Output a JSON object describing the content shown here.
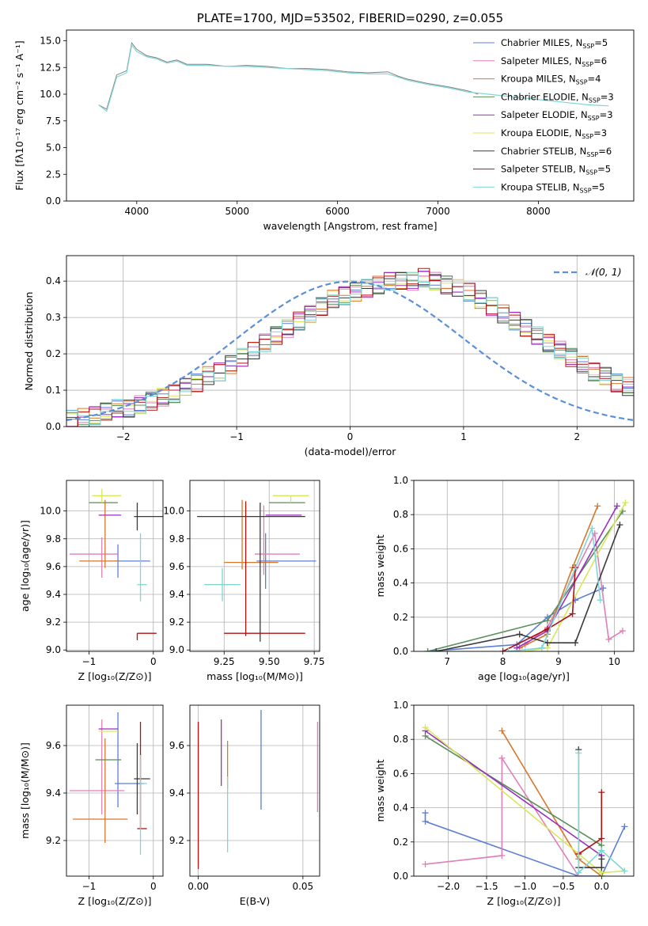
{
  "chart_data": [
    {
      "id": "spectrum",
      "type": "line",
      "title": "PLATE=1700, MJD=53502, FIBERID=0290, z=0.055",
      "xlabel": "wavelength [Angstrom, rest frame]",
      "ylabel": "Flux [fλ10⁻¹⁷ erg cm⁻² s⁻¹ A⁻¹]",
      "xlim": [
        3300,
        8950
      ],
      "ylim": [
        0,
        16
      ],
      "xticks": [
        "4000",
        "5000",
        "6000",
        "7000",
        "8000"
      ],
      "yticks": [
        "0.0",
        "2.5",
        "5.0",
        "7.5",
        "10.0",
        "12.5",
        "15.0"
      ],
      "grid": false,
      "legend_position": "top-right",
      "legend": [
        {
          "name": "Chabrier MILES, N",
          "sub": "SSP",
          "tail": "=5",
          "color": "#5b7fd6"
        },
        {
          "name": "Salpeter MILES, N",
          "sub": "SSP",
          "tail": "=6",
          "color": "#e07fb8"
        },
        {
          "name": "Kroupa MILES, N",
          "sub": "SSP",
          "tail": "=4",
          "color": "#d9772a"
        },
        {
          "name": "Chabrier ELODIE, N",
          "sub": "SSP",
          "tail": "=3",
          "color": "#5a8f5a"
        },
        {
          "name": "Salpeter ELODIE, N",
          "sub": "SSP",
          "tail": "=3",
          "color": "#9b2fbf"
        },
        {
          "name": "Kroupa ELODIE, N",
          "sub": "SSP",
          "tail": "=3",
          "color": "#d5e85a"
        },
        {
          "name": "Chabrier STELIB, N",
          "sub": "SSP",
          "tail": "=6",
          "color": "#3a3a3a"
        },
        {
          "name": "Salpeter STELIB, N",
          "sub": "SSP",
          "tail": "=5",
          "color": "#b01010"
        },
        {
          "name": "Kroupa STELIB, N",
          "sub": "SSP",
          "tail": "=5",
          "color": "#7fd6d6"
        }
      ],
      "series": [
        {
          "name": "data",
          "color": "#808080",
          "x": [
            3620,
            3700,
            3800,
            3900,
            3950,
            4000,
            4100,
            4200,
            4300,
            4400,
            4500,
            4700,
            4900,
            5100,
            5300,
            5500,
            5700,
            5900,
            6100,
            6300,
            6500,
            6600,
            6700,
            6900,
            7100,
            7300,
            7400
          ],
          "y": [
            9.0,
            8.6,
            11.8,
            12.2,
            14.8,
            14.2,
            13.6,
            13.4,
            13.0,
            13.2,
            12.8,
            12.8,
            12.6,
            12.7,
            12.6,
            12.4,
            12.4,
            12.3,
            12.1,
            12.0,
            12.1,
            11.7,
            11.4,
            11.0,
            10.7,
            10.3,
            10.0
          ]
        },
        {
          "name": "model",
          "color": "#7fd6d6",
          "x": [
            3620,
            3700,
            3800,
            3900,
            3950,
            4000,
            4100,
            4200,
            4300,
            4400,
            4500,
            4700,
            4900,
            5100,
            5300,
            5500,
            5700,
            5900,
            6100,
            6300,
            6500,
            6700,
            6900,
            7100,
            7300,
            7500,
            7700,
            7900,
            8100,
            8300,
            8500,
            8700
          ],
          "y": [
            9.0,
            8.4,
            11.6,
            12.0,
            14.6,
            14.0,
            13.5,
            13.3,
            12.9,
            13.1,
            12.7,
            12.7,
            12.6,
            12.6,
            12.5,
            12.4,
            12.3,
            12.2,
            12.0,
            11.9,
            11.9,
            11.3,
            10.9,
            10.6,
            10.2,
            10.0,
            9.8,
            9.6,
            9.4,
            9.2,
            9.0,
            8.9
          ]
        }
      ]
    },
    {
      "id": "residuals",
      "type": "histogram",
      "xlabel": "(data-model)/error",
      "ylabel": "Normed distribution",
      "xlim": [
        -2.5,
        2.5
      ],
      "ylim": [
        0,
        0.47
      ],
      "xticks": [
        "−2",
        "−1",
        "0",
        "1",
        "2"
      ],
      "yticks": [
        "0.0",
        "0.1",
        "0.2",
        "0.3",
        "0.4"
      ],
      "grid": true,
      "legend_position": "top-right",
      "legend": [
        {
          "name": "𝒩(0, 1)",
          "color": "#5b8fd9",
          "style": "dashed"
        }
      ],
      "bin_width": 0.1,
      "bin_start": -2.5,
      "hist_values": [
        0.02,
        0.025,
        0.03,
        0.04,
        0.05,
        0.05,
        0.06,
        0.07,
        0.08,
        0.09,
        0.11,
        0.12,
        0.14,
        0.15,
        0.17,
        0.19,
        0.21,
        0.23,
        0.25,
        0.27,
        0.29,
        0.31,
        0.33,
        0.35,
        0.36,
        0.37,
        0.38,
        0.39,
        0.4,
        0.4,
        0.4,
        0.41,
        0.4,
        0.39,
        0.38,
        0.37,
        0.35,
        0.33,
        0.31,
        0.29,
        0.27,
        0.25,
        0.23,
        0.21,
        0.19,
        0.17,
        0.15,
        0.14,
        0.12,
        0.11
      ],
      "normal": {
        "mean": 0,
        "sd": 1
      }
    },
    {
      "id": "age-vs-Z",
      "type": "errorbar",
      "xlabel": "Z [log₁₀(Z/Z⊙)]",
      "ylabel": "age  [log₁₀(age/yr)]",
      "xlim": [
        -1.35,
        0.15
      ],
      "ylim": [
        8.99,
        10.22
      ],
      "xticks": [
        "−1",
        "0"
      ],
      "yticks": [
        "9.0",
        "9.2",
        "9.4",
        "9.6",
        "9.8",
        "10.0"
      ],
      "grid": true,
      "points": [
        {
          "x": -0.55,
          "y": 9.64,
          "xerr": [
            0.05,
            0.5
          ],
          "yerr": [
            0.12,
            0.12
          ],
          "color": "#5b7fd6"
        },
        {
          "x": -0.8,
          "y": 9.69,
          "xerr": [
            0.5,
            0.25
          ],
          "yerr": [
            0.17,
            0.12
          ],
          "color": "#e07fb8"
        },
        {
          "x": -0.75,
          "y": 9.64,
          "xerr": [
            0.4,
            0.2
          ],
          "yerr": [
            0.05,
            0.44
          ],
          "color": "#d9772a"
        },
        {
          "x": -0.8,
          "y": 10.06,
          "xerr": [
            0.2,
            0.25
          ],
          "yerr": [
            0.0,
            0.0
          ],
          "color": "#5a8f5a"
        },
        {
          "x": -0.8,
          "y": 9.97,
          "xerr": [
            0.05,
            0.3
          ],
          "yerr": [
            0.0,
            0.0
          ],
          "color": "#9b2fbf"
        },
        {
          "x": -0.8,
          "y": 10.11,
          "xerr": [
            0.15,
            0.3
          ],
          "yerr": [
            0.05,
            0.05
          ],
          "color": "#d5e85a"
        },
        {
          "x": -0.25,
          "y": 9.96,
          "xerr": [
            0.05,
            0.4
          ],
          "yerr": [
            0.1,
            0.1
          ],
          "color": "#3a3a3a"
        },
        {
          "x": -0.25,
          "y": 9.12,
          "xerr": [
            0.0,
            0.3
          ],
          "yerr": [
            0.05,
            0.0
          ],
          "color": "#b01010"
        },
        {
          "x": -0.2,
          "y": 9.47,
          "xerr": [
            0.05,
            0.1
          ],
          "yerr": [
            0.12,
            0.37
          ],
          "color": "#7fd6d6"
        }
      ]
    },
    {
      "id": "age-vs-mass",
      "type": "errorbar",
      "xlabel": "mass [log₁₀(M/M⊙)]",
      "ylabel": "",
      "xlim": [
        9.06,
        9.78
      ],
      "ylim": [
        8.99,
        10.22
      ],
      "xticks": [
        "9.25",
        "9.50",
        "9.75"
      ],
      "yticks": [
        "9.0",
        "9.2",
        "9.4",
        "9.6",
        "9.8",
        "10.0"
      ],
      "grid": true,
      "points": [
        {
          "x": 9.48,
          "y": 9.64,
          "xerr": [
            0.05,
            0.28
          ],
          "yerr": [
            0.2,
            0.2
          ],
          "color": "#5b7fd6"
        },
        {
          "x": 9.47,
          "y": 9.69,
          "xerr": [
            0.05,
            0.2
          ],
          "yerr": [
            0.15,
            0.35
          ],
          "color": "#e07fb8"
        },
        {
          "x": 9.35,
          "y": 9.63,
          "xerr": [
            0.1,
            0.2
          ],
          "yerr": [
            0.05,
            0.45
          ],
          "color": "#d9772a"
        },
        {
          "x": 9.55,
          "y": 10.06,
          "xerr": [
            0.05,
            0.15
          ],
          "yerr": [
            0.0,
            0.0
          ],
          "color": "#5a8f5a"
        },
        {
          "x": 9.53,
          "y": 9.97,
          "xerr": [
            0.05,
            0.15
          ],
          "yerr": [
            0.0,
            0.0
          ],
          "color": "#9b2fbf"
        },
        {
          "x": 9.62,
          "y": 10.11,
          "xerr": [
            0.1,
            0.1
          ],
          "yerr": [
            0.05,
            0.0
          ],
          "color": "#d5e85a"
        },
        {
          "x": 9.45,
          "y": 9.96,
          "xerr": [
            0.35,
            0.25
          ],
          "yerr": [
            0.9,
            0.1
          ],
          "color": "#3a3a3a"
        },
        {
          "x": 9.37,
          "y": 9.12,
          "xerr": [
            0.12,
            0.33
          ],
          "yerr": [
            0.02,
            0.95
          ],
          "color": "#b01010"
        },
        {
          "x": 9.24,
          "y": 9.47,
          "xerr": [
            0.1,
            0.1
          ],
          "yerr": [
            0.12,
            0.12
          ],
          "color": "#7fd6d6"
        }
      ]
    },
    {
      "id": "massweight-vs-age",
      "type": "line",
      "xlabel": "age  [log₁₀(age/yr)]",
      "ylabel": "mass weight",
      "xlim": [
        6.4,
        10.35
      ],
      "ylim": [
        0,
        1.0
      ],
      "xticks": [
        "7",
        "8",
        "9",
        "10"
      ],
      "yticks": [
        "0.0",
        "0.2",
        "0.4",
        "0.6",
        "0.8",
        "1.0"
      ],
      "grid": true,
      "series": [
        {
          "color": "#5b7fd6",
          "x": [
            6.65,
            8.25,
            8.8,
            9.3,
            9.8
          ],
          "y": [
            0.0,
            0.04,
            0.2,
            0.3,
            0.37
          ]
        },
        {
          "color": "#e07fb8",
          "x": [
            8.4,
            8.8,
            9.65,
            9.9,
            10.15
          ],
          "y": [
            0.04,
            0.14,
            0.69,
            0.07,
            0.12
          ]
        },
        {
          "color": "#d9772a",
          "x": [
            8.3,
            8.8,
            9.25,
            9.7
          ],
          "y": [
            0.02,
            0.1,
            0.49,
            0.85
          ]
        },
        {
          "color": "#5a8f5a",
          "x": [
            6.65,
            8.8,
            10.15
          ],
          "y": [
            0.0,
            0.18,
            0.82
          ]
        },
        {
          "color": "#9b2fbf",
          "x": [
            8.25,
            8.8,
            10.05
          ],
          "y": [
            0.02,
            0.12,
            0.85
          ]
        },
        {
          "color": "#d5e85a",
          "x": [
            8.4,
            8.8,
            10.2
          ],
          "y": [
            0.0,
            0.02,
            0.87
          ]
        },
        {
          "color": "#3a3a3a",
          "x": [
            6.8,
            8.3,
            8.8,
            9.3,
            10.1
          ],
          "y": [
            0.0,
            0.1,
            0.05,
            0.05,
            0.74
          ]
        },
        {
          "color": "#b01010",
          "x": [
            8.0,
            8.8,
            9.25,
            9.3
          ],
          "y": [
            0.0,
            0.13,
            0.22,
            0.49
          ]
        },
        {
          "color": "#7fd6d6",
          "x": [
            8.1,
            8.7,
            9.6,
            9.75
          ],
          "y": [
            0.0,
            0.02,
            0.72,
            0.3
          ]
        }
      ]
    },
    {
      "id": "mass-vs-Z",
      "type": "errorbar",
      "xlabel": "Z [log₁₀(Z/Z⊙)]",
      "ylabel": "mass [log₁₀(M/M⊙)]",
      "xlim": [
        -1.35,
        0.15
      ],
      "ylim": [
        9.05,
        9.77
      ],
      "xticks": [
        "−1",
        "0"
      ],
      "yticks": [
        "9.2",
        "9.4",
        "9.6"
      ],
      "grid": true,
      "points": [
        {
          "x": -0.55,
          "y": 9.44,
          "xerr": [
            0.05,
            0.4
          ],
          "yerr": [
            0.1,
            0.3
          ],
          "color": "#5b7fd6"
        },
        {
          "x": -0.8,
          "y": 9.41,
          "xerr": [
            0.5,
            0.35
          ],
          "yerr": [
            0.1,
            0.3
          ],
          "color": "#e07fb8"
        },
        {
          "x": -0.75,
          "y": 9.29,
          "xerr": [
            0.5,
            0.35
          ],
          "yerr": [
            0.1,
            0.34
          ],
          "color": "#d9772a"
        },
        {
          "x": -0.8,
          "y": 9.54,
          "xerr": [
            0.1,
            0.3
          ],
          "yerr": [
            0.0,
            0.0
          ],
          "color": "#5a8f5a"
        },
        {
          "x": -0.75,
          "y": 9.67,
          "xerr": [
            0.1,
            0.2
          ],
          "yerr": [
            0.0,
            0.0
          ],
          "color": "#9b2fbf"
        },
        {
          "x": -0.85,
          "y": 9.66,
          "xerr": [
            0.0,
            0.3
          ],
          "yerr": [
            0.0,
            0.0
          ],
          "color": "#d5e85a"
        },
        {
          "x": -0.25,
          "y": 9.46,
          "xerr": [
            0.05,
            0.2
          ],
          "yerr": [
            0.15,
            0.15
          ],
          "color": "#3a3a3a"
        },
        {
          "x": -0.2,
          "y": 9.25,
          "xerr": [
            0.05,
            0.1
          ],
          "yerr": [
            0.0,
            0.45
          ],
          "color": "#b01010"
        },
        {
          "x": -0.2,
          "y": 9.44,
          "xerr": [
            0.0,
            0.1
          ],
          "yerr": [
            0.3,
            0.12
          ],
          "color": "#7fd6d6"
        }
      ]
    },
    {
      "id": "mass-vs-EBV",
      "type": "errorbar",
      "xlabel": "E(B-V)",
      "ylabel": "",
      "xlim": [
        -0.004,
        0.058
      ],
      "ylim": [
        9.05,
        9.77
      ],
      "xticks": [
        "0.00",
        "0.05"
      ],
      "yticks": [
        "9.2",
        "9.4",
        "9.6"
      ],
      "grid": true,
      "points": [
        {
          "x": 0.03,
          "y": 9.54,
          "yerr": [
            0.21,
            0.21
          ],
          "color": "#5b7fd6"
        },
        {
          "x": 0.057,
          "y": 9.51,
          "yerr": [
            0.19,
            0.19
          ],
          "color": "#e07fb8"
        },
        {
          "x": 0.014,
          "y": 9.52,
          "yerr": [
            0.1,
            0.1
          ],
          "color": "#d9772a"
        },
        {
          "x": 0.011,
          "y": 9.57,
          "yerr": [
            0.14,
            0.14
          ],
          "color": "#9b2fbf"
        },
        {
          "x": 0.0,
          "y": 9.39,
          "yerr": [
            0.31,
            0.31
          ],
          "color": "#b01010"
        },
        {
          "x": 0.014,
          "y": 9.31,
          "yerr": [
            0.16,
            0.16
          ],
          "color": "#7fd6d6"
        }
      ]
    },
    {
      "id": "massweight-vs-Z",
      "type": "line",
      "xlabel": "Z [log₁₀(Z/Z⊙)]",
      "ylabel": "mass weight",
      "xlim": [
        -2.45,
        0.42
      ],
      "ylim": [
        0,
        1.0
      ],
      "xticks": [
        "−2.0",
        "−1.5",
        "−1.0",
        "−0.5",
        "0.0"
      ],
      "yticks": [
        "0.0",
        "0.2",
        "0.4",
        "0.6",
        "0.8",
        "1.0"
      ],
      "grid": true,
      "series": [
        {
          "color": "#5b7fd6",
          "x": [
            -2.3,
            -2.3,
            -0.3,
            0.0,
            0.3
          ],
          "y": [
            0.37,
            0.32,
            0.0,
            0.0,
            0.29
          ]
        },
        {
          "color": "#e07fb8",
          "x": [
            -2.3,
            -1.3,
            -1.3,
            -0.3,
            -0.3
          ],
          "y": [
            0.07,
            0.12,
            0.69,
            0.0,
            0.14
          ]
        },
        {
          "color": "#d9772a",
          "x": [
            -1.3,
            -0.3,
            0.0
          ],
          "y": [
            0.85,
            0.1,
            0.0
          ]
        },
        {
          "color": "#5a8f5a",
          "x": [
            -2.3,
            0.0,
            0.0
          ],
          "y": [
            0.82,
            0.18,
            0.0
          ]
        },
        {
          "color": "#9b2fbf",
          "x": [
            -2.3,
            0.0
          ],
          "y": [
            0.85,
            0.12
          ]
        },
        {
          "color": "#d5e85a",
          "x": [
            -2.3,
            0.0,
            0.3
          ],
          "y": [
            0.87,
            0.02,
            0.03
          ]
        },
        {
          "color": "#3a3a3a",
          "x": [
            -0.3,
            -0.3,
            0.0,
            0.0
          ],
          "y": [
            0.74,
            0.05,
            0.05,
            0.1
          ]
        },
        {
          "color": "#b01010",
          "x": [
            -0.3,
            0.0,
            0.0
          ],
          "y": [
            0.13,
            0.22,
            0.49
          ]
        },
        {
          "color": "#7fd6d6",
          "x": [
            -0.3,
            -0.3,
            0.0,
            0.3
          ],
          "y": [
            0.72,
            0.02,
            0.15,
            0.03
          ]
        }
      ]
    }
  ]
}
